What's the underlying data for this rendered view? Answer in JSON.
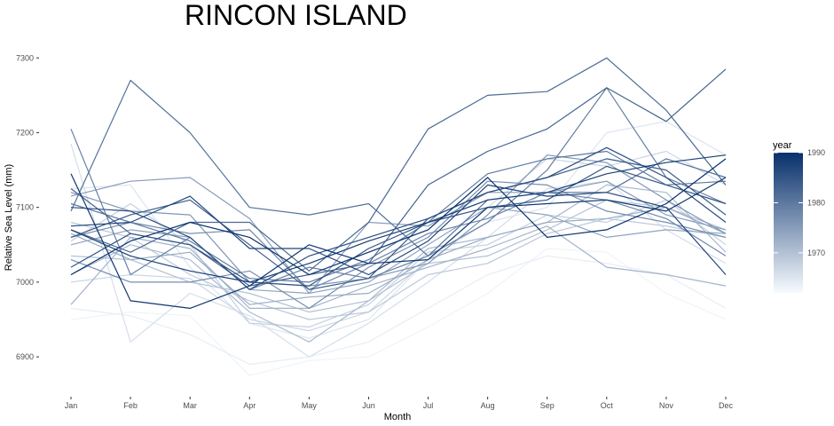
{
  "chart_data": {
    "type": "line",
    "title": "RINCON ISLAND",
    "xlabel": "Month",
    "ylabel": "Relative Sea Level (mm)",
    "categories": [
      "Jan",
      "Feb",
      "Mar",
      "Apr",
      "May",
      "Jun",
      "Jul",
      "Aug",
      "Sep",
      "Oct",
      "Nov",
      "Dec"
    ],
    "ylim": [
      6855,
      7330
    ],
    "yticks": [
      6900,
      7000,
      7100,
      7200,
      7300
    ],
    "grid": false,
    "legend": {
      "title": "year",
      "position": "right",
      "min": 1962,
      "max": 1990,
      "ticks": [
        1970,
        1980,
        1990
      ],
      "color_low": "#F7FBFF",
      "color_high": "#08306B"
    },
    "series": [
      {
        "year": 1963,
        "values": [
          6950,
          6960,
          6955,
          6875,
          6895,
          6900,
          6940,
          6985,
          7045,
          7040,
          6985,
          6950
        ]
      },
      {
        "year": 1964,
        "values": [
          6965,
          6955,
          6930,
          6890,
          6900,
          6920,
          6965,
          7010,
          7035,
          7025,
          7010,
          6965
        ]
      },
      {
        "year": 1965,
        "values": [
          7125,
          7130,
          7020,
          6945,
          6925,
          6950,
          7030,
          7080,
          7100,
          7200,
          7215,
          7170
        ]
      },
      {
        "year": 1966,
        "values": [
          7185,
          6920,
          6985,
          6955,
          6900,
          6945,
          7000,
          7060,
          7125,
          7135,
          7070,
          7025
        ]
      },
      {
        "year": 1967,
        "values": [
          7000,
          7010,
          7005,
          6950,
          6935,
          6960,
          7030,
          7100,
          7165,
          7155,
          7175,
          7130
        ]
      },
      {
        "year": 1968,
        "values": [
          7055,
          7105,
          7050,
          6945,
          6940,
          6970,
          7040,
          7050,
          7090,
          7080,
          7110,
          7050
        ]
      },
      {
        "year": 1969,
        "values": [
          7080,
          7060,
          7010,
          6975,
          6950,
          6960,
          7010,
          7025,
          7065,
          7085,
          7075,
          7060
        ]
      },
      {
        "year": 1970,
        "values": [
          7035,
          7030,
          7000,
          6985,
          6960,
          6975,
          7025,
          7035,
          7070,
          7110,
          7100,
          7070
        ]
      },
      {
        "year": 1971,
        "values": [
          7010,
          7050,
          7030,
          6960,
          6920,
          6975,
          7045,
          7060,
          7080,
          7130,
          7120,
          7040
        ]
      },
      {
        "year": 1972,
        "values": [
          6970,
          7060,
          7045,
          6965,
          6965,
          6995,
          7020,
          7045,
          7075,
          7020,
          7010,
          6995
        ]
      },
      {
        "year": 1973,
        "values": [
          7065,
          7030,
          7040,
          6970,
          6980,
          6985,
          7030,
          7060,
          7080,
          7085,
          7100,
          7065
        ]
      },
      {
        "year": 1974,
        "values": [
          7050,
          7070,
          7060,
          6990,
          6985,
          7000,
          7050,
          7100,
          7090,
          7060,
          7070,
          7065
        ]
      },
      {
        "year": 1975,
        "values": [
          7115,
          7135,
          7140,
          7085,
          6985,
          7080,
          7075,
          7120,
          7120,
          7135,
          7090,
          7070
        ]
      },
      {
        "year": 1976,
        "values": [
          7120,
          7095,
          7090,
          7000,
          6995,
          7005,
          7025,
          7090,
          7170,
          7160,
          7110,
          7065
        ]
      },
      {
        "year": 1977,
        "values": [
          7030,
          7000,
          7000,
          7015,
          6965,
          7020,
          7060,
          7135,
          7130,
          7095,
          7080,
          7060
        ]
      },
      {
        "year": 1978,
        "values": [
          7060,
          7080,
          7065,
          7070,
          6990,
          7025,
          7065,
          7085,
          7120,
          7110,
          7085,
          7035
        ]
      },
      {
        "year": 1979,
        "values": [
          7205,
          7010,
          7060,
          6990,
          7020,
          7005,
          7035,
          7080,
          7150,
          7260,
          7140,
          7105
        ]
      },
      {
        "year": 1980,
        "values": [
          7105,
          7080,
          7055,
          7005,
          7000,
          7030,
          7080,
          7145,
          7165,
          7175,
          7130,
          7135
        ]
      },
      {
        "year": 1981,
        "values": [
          7095,
          7270,
          7200,
          7100,
          7090,
          7105,
          7035,
          7110,
          7120,
          7120,
          7165,
          7140
        ]
      },
      {
        "year": 1982,
        "values": [
          7070,
          7040,
          7080,
          7080,
          7015,
          7080,
          7205,
          7250,
          7255,
          7300,
          7230,
          7130
        ]
      },
      {
        "year": 1983,
        "values": [
          7125,
          7065,
          7050,
          6995,
          7010,
          7025,
          7130,
          7175,
          7205,
          7260,
          7215,
          7285
        ]
      },
      {
        "year": 1984,
        "values": [
          7060,
          7090,
          7110,
          7050,
          6990,
          7005,
          7085,
          7120,
          7140,
          7165,
          7150,
          7090
        ]
      },
      {
        "year": 1985,
        "values": [
          7020,
          7065,
          7050,
          7000,
          6995,
          7045,
          7080,
          7100,
          7110,
          7155,
          7130,
          7105
        ]
      },
      {
        "year": 1986,
        "values": [
          7100,
          7095,
          7060,
          6990,
          7035,
          7060,
          7085,
          7120,
          7140,
          7180,
          7140,
          7080
        ]
      },
      {
        "year": 1987,
        "values": [
          7075,
          7080,
          7115,
          7045,
          7045,
          7010,
          7055,
          7130,
          7115,
          7120,
          7100,
          7010
        ]
      },
      {
        "year": 1988,
        "values": [
          7070,
          7035,
          7015,
          7000,
          7025,
          7055,
          7080,
          7110,
          7120,
          7145,
          7160,
          7170
        ]
      },
      {
        "year": 1989,
        "values": [
          7145,
          6975,
          6965,
          6995,
          7050,
          7025,
          7030,
          7100,
          7105,
          7110,
          7095,
          7140
        ]
      },
      {
        "year": 1990,
        "values": [
          7010,
          7055,
          7080,
          7060,
          7010,
          7040,
          7070,
          7140,
          7060,
          7070,
          7105,
          7165
        ]
      }
    ]
  }
}
